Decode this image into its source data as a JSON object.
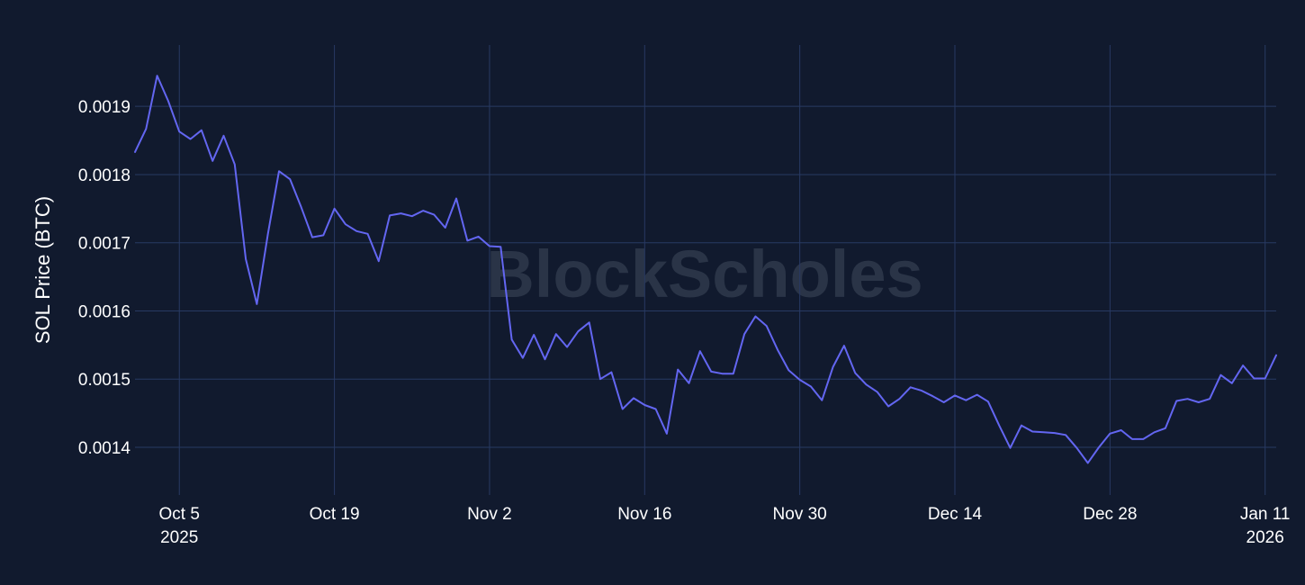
{
  "watermark": "BlockScholes",
  "colors": {
    "background": "#111a2e",
    "grid": "#283a63",
    "line": "#6366f1",
    "text": "#ffffff",
    "watermark": "#2a3447"
  },
  "chart_data": {
    "type": "line",
    "title": "",
    "xlabel": "",
    "ylabel": "SOL Price (BTC)",
    "grid": true,
    "legend": "none",
    "xlim": [
      "2025-10-01",
      "2026-01-12"
    ],
    "ylim": [
      0.00133,
      0.00199
    ],
    "x_ticks": [
      {
        "date": "2025-10-05",
        "label": "Oct 5",
        "sublabel": "2025"
      },
      {
        "date": "2025-10-19",
        "label": "Oct 19",
        "sublabel": ""
      },
      {
        "date": "2025-11-02",
        "label": "Nov 2",
        "sublabel": ""
      },
      {
        "date": "2025-11-16",
        "label": "Nov 16",
        "sublabel": ""
      },
      {
        "date": "2025-11-30",
        "label": "Nov 30",
        "sublabel": ""
      },
      {
        "date": "2025-12-14",
        "label": "Dec 14",
        "sublabel": ""
      },
      {
        "date": "2025-12-28",
        "label": "Dec 28",
        "sublabel": ""
      },
      {
        "date": "2026-01-11",
        "label": "Jan 11",
        "sublabel": "2026"
      }
    ],
    "y_ticks": [
      {
        "value": 0.0014,
        "label": "0.0014"
      },
      {
        "value": 0.0015,
        "label": "0.0015"
      },
      {
        "value": 0.0016,
        "label": "0.0016"
      },
      {
        "value": 0.0017,
        "label": "0.0017"
      },
      {
        "value": 0.0018,
        "label": "0.0018"
      },
      {
        "value": 0.0019,
        "label": "0.0019"
      }
    ],
    "series": [
      {
        "x": [
          "2025-10-01",
          "2025-10-02",
          "2025-10-03",
          "2025-10-04",
          "2025-10-05",
          "2025-10-06",
          "2025-10-07",
          "2025-10-08",
          "2025-10-09",
          "2025-10-10",
          "2025-10-11",
          "2025-10-12",
          "2025-10-13",
          "2025-10-14",
          "2025-10-15",
          "2025-10-16",
          "2025-10-17",
          "2025-10-18",
          "2025-10-19",
          "2025-10-20",
          "2025-10-21",
          "2025-10-22",
          "2025-10-23",
          "2025-10-24",
          "2025-10-25",
          "2025-10-26",
          "2025-10-27",
          "2025-10-28",
          "2025-10-29",
          "2025-10-30",
          "2025-10-31",
          "2025-11-01",
          "2025-11-02",
          "2025-11-03",
          "2025-11-04",
          "2025-11-05",
          "2025-11-06",
          "2025-11-07",
          "2025-11-08",
          "2025-11-09",
          "2025-11-10",
          "2025-11-11",
          "2025-11-12",
          "2025-11-13",
          "2025-11-14",
          "2025-11-15",
          "2025-11-16",
          "2025-11-17",
          "2025-11-18",
          "2025-11-19",
          "2025-11-20",
          "2025-11-21",
          "2025-11-22",
          "2025-11-23",
          "2025-11-24",
          "2025-11-25",
          "2025-11-26",
          "2025-11-27",
          "2025-11-28",
          "2025-11-29",
          "2025-11-30",
          "2025-12-01",
          "2025-12-02",
          "2025-12-03",
          "2025-12-04",
          "2025-12-05",
          "2025-12-06",
          "2025-12-07",
          "2025-12-08",
          "2025-12-09",
          "2025-12-10",
          "2025-12-11",
          "2025-12-12",
          "2025-12-13",
          "2025-12-14",
          "2025-12-15",
          "2025-12-16",
          "2025-12-17",
          "2025-12-18",
          "2025-12-19",
          "2025-12-20",
          "2025-12-21",
          "2025-12-22",
          "2025-12-23",
          "2025-12-24",
          "2025-12-25",
          "2025-12-26",
          "2025-12-27",
          "2025-12-28",
          "2025-12-29",
          "2025-12-30",
          "2025-12-31",
          "2026-01-01",
          "2026-01-02",
          "2026-01-03",
          "2026-01-04",
          "2026-01-05",
          "2026-01-06",
          "2026-01-07",
          "2026-01-08",
          "2026-01-09",
          "2026-01-10",
          "2026-01-11",
          "2026-01-12"
        ],
        "y": [
          0.001833,
          0.001867,
          0.001945,
          0.001908,
          0.001863,
          0.001852,
          0.001865,
          0.00182,
          0.001857,
          0.001815,
          0.001676,
          0.00161,
          0.001713,
          0.001805,
          0.001793,
          0.001752,
          0.001708,
          0.001711,
          0.00175,
          0.001727,
          0.001717,
          0.001713,
          0.001673,
          0.00174,
          0.001743,
          0.001739,
          0.001747,
          0.001741,
          0.001722,
          0.001765,
          0.001703,
          0.001709,
          0.001695,
          0.001694,
          0.001558,
          0.001531,
          0.001565,
          0.001529,
          0.001566,
          0.001547,
          0.00157,
          0.001583,
          0.0015,
          0.00151,
          0.001456,
          0.001472,
          0.001462,
          0.001456,
          0.00142,
          0.001514,
          0.001494,
          0.001541,
          0.001511,
          0.001508,
          0.001508,
          0.001566,
          0.001592,
          0.001578,
          0.001543,
          0.001513,
          0.001499,
          0.001489,
          0.001469,
          0.001518,
          0.001549,
          0.001509,
          0.001492,
          0.001481,
          0.00146,
          0.001471,
          0.001488,
          0.001483,
          0.001475,
          0.001466,
          0.001476,
          0.001469,
          0.001477,
          0.001467,
          0.001432,
          0.001399,
          0.001432,
          0.001423,
          0.001422,
          0.001421,
          0.001418,
          0.001399,
          0.001377,
          0.0014,
          0.00142,
          0.001425,
          0.001412,
          0.001412,
          0.001422,
          0.001428,
          0.001468,
          0.001471,
          0.001466,
          0.001471,
          0.001506,
          0.001494,
          0.00152,
          0.001501,
          0.001501,
          0.001535
        ]
      }
    ]
  }
}
